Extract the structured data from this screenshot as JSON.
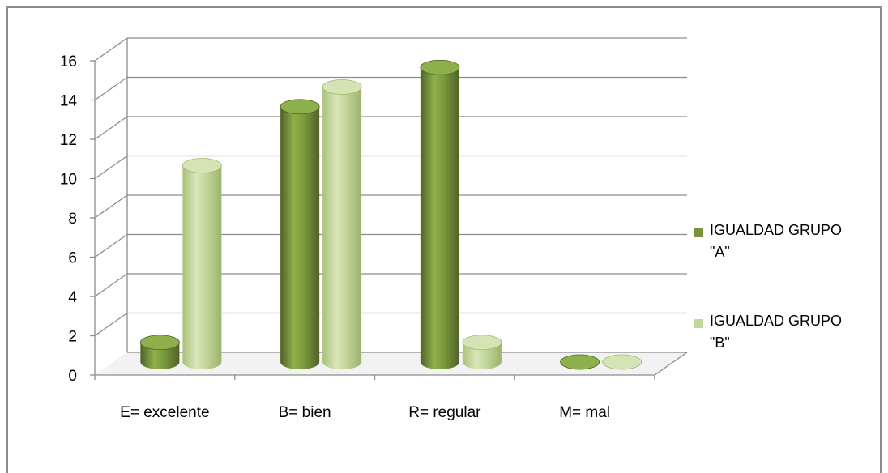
{
  "chart_data": {
    "type": "bar",
    "title": "",
    "xlabel": "",
    "ylabel": "",
    "categories": [
      "E= excelente",
      "B= bien",
      "R= regular",
      "M= mal"
    ],
    "series": [
      {
        "name": "IGUALDAD GRUPO \"A\"",
        "values": [
          1,
          13,
          15,
          0
        ],
        "color": "#77933c"
      },
      {
        "name": "IGUALDAD GRUPO \"B\"",
        "values": [
          10,
          14,
          1,
          0
        ],
        "color": "#c3d69b"
      }
    ],
    "ylim": [
      0,
      16
    ],
    "yticks": [
      0,
      2,
      4,
      6,
      8,
      10,
      12,
      14,
      16
    ],
    "grid": true,
    "legend_position": "right"
  }
}
